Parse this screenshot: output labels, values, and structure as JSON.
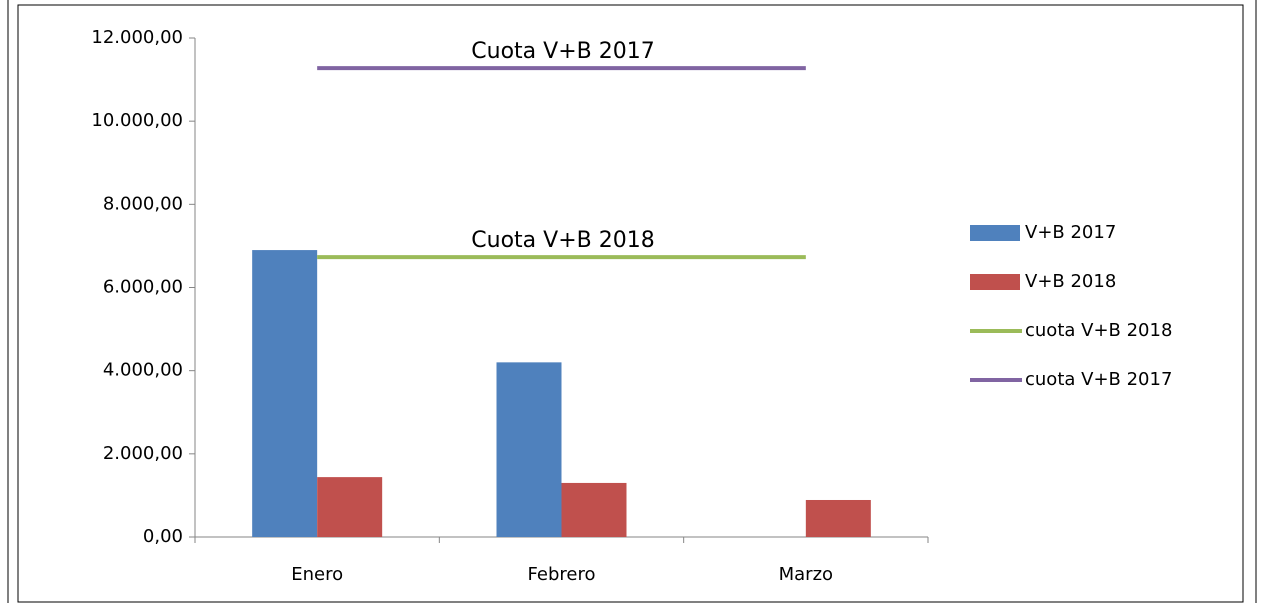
{
  "chart_data": {
    "type": "bar",
    "categories": [
      "Enero",
      "Febrero",
      "Marzo"
    ],
    "series": [
      {
        "name": "V+B 2017",
        "type": "bar",
        "color": "#4f81bd",
        "values": [
          6900,
          4200,
          null
        ]
      },
      {
        "name": "V+B 2018",
        "type": "bar",
        "color": "#c0504d",
        "values": [
          1440,
          1300,
          890
        ]
      },
      {
        "name": "cuota V+B 2018",
        "type": "line",
        "color": "#9bbb59",
        "values": [
          6730,
          6730,
          6730
        ]
      },
      {
        "name": "cuota V+B 2017",
        "type": "line",
        "color": "#8064a2",
        "values": [
          11275,
          11275,
          11275
        ]
      }
    ],
    "annotations": [
      "Cuota V+B 2018",
      "Cuota V+B 2017"
    ],
    "ylim": [
      0,
      12000
    ],
    "yticks": [
      {
        "value": 0,
        "label": "0,00"
      },
      {
        "value": 2000,
        "label": "2.000,00"
      },
      {
        "value": 4000,
        "label": "4.000,00"
      },
      {
        "value": 6000,
        "label": "6.000,00"
      },
      {
        "value": 8000,
        "label": "8.000,00"
      },
      {
        "value": 10000,
        "label": "10.000,00"
      },
      {
        "value": 12000,
        "label": "12.000,00"
      }
    ],
    "grid": false,
    "legend": "right"
  }
}
